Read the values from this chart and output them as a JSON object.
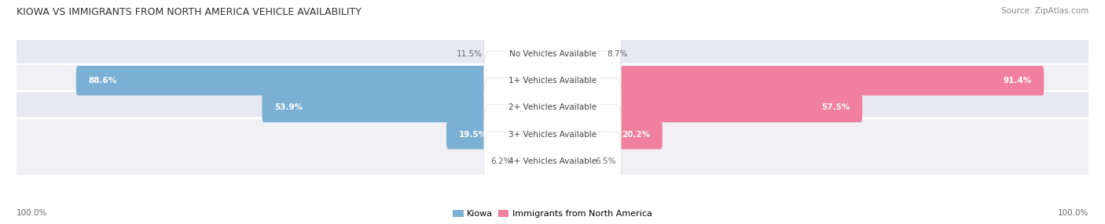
{
  "title": "KIOWA VS IMMIGRANTS FROM NORTH AMERICA VEHICLE AVAILABILITY",
  "source": "Source: ZipAtlas.com",
  "categories": [
    "No Vehicles Available",
    "1+ Vehicles Available",
    "2+ Vehicles Available",
    "3+ Vehicles Available",
    "4+ Vehicles Available"
  ],
  "kiowa_values": [
    11.5,
    88.6,
    53.9,
    19.5,
    6.2
  ],
  "immigrant_values": [
    8.7,
    91.4,
    57.5,
    20.2,
    6.5
  ],
  "kiowa_color": "#7bafd4",
  "immigrant_color": "#f07fa0",
  "kiowa_label": "Kiowa",
  "immigrant_label": "Immigrants from North America",
  "max_value": 100.0,
  "figsize": [
    14.06,
    2.86
  ],
  "dpi": 100,
  "bg_color": "#ffffff",
  "row_bg_even": "#f0f0f5",
  "row_bg_odd": "#e8e8f0",
  "label_pill_color": "#ffffff",
  "value_color_inside": "#ffffff",
  "value_color_outside": "#666666",
  "center_label_color": "#444444"
}
